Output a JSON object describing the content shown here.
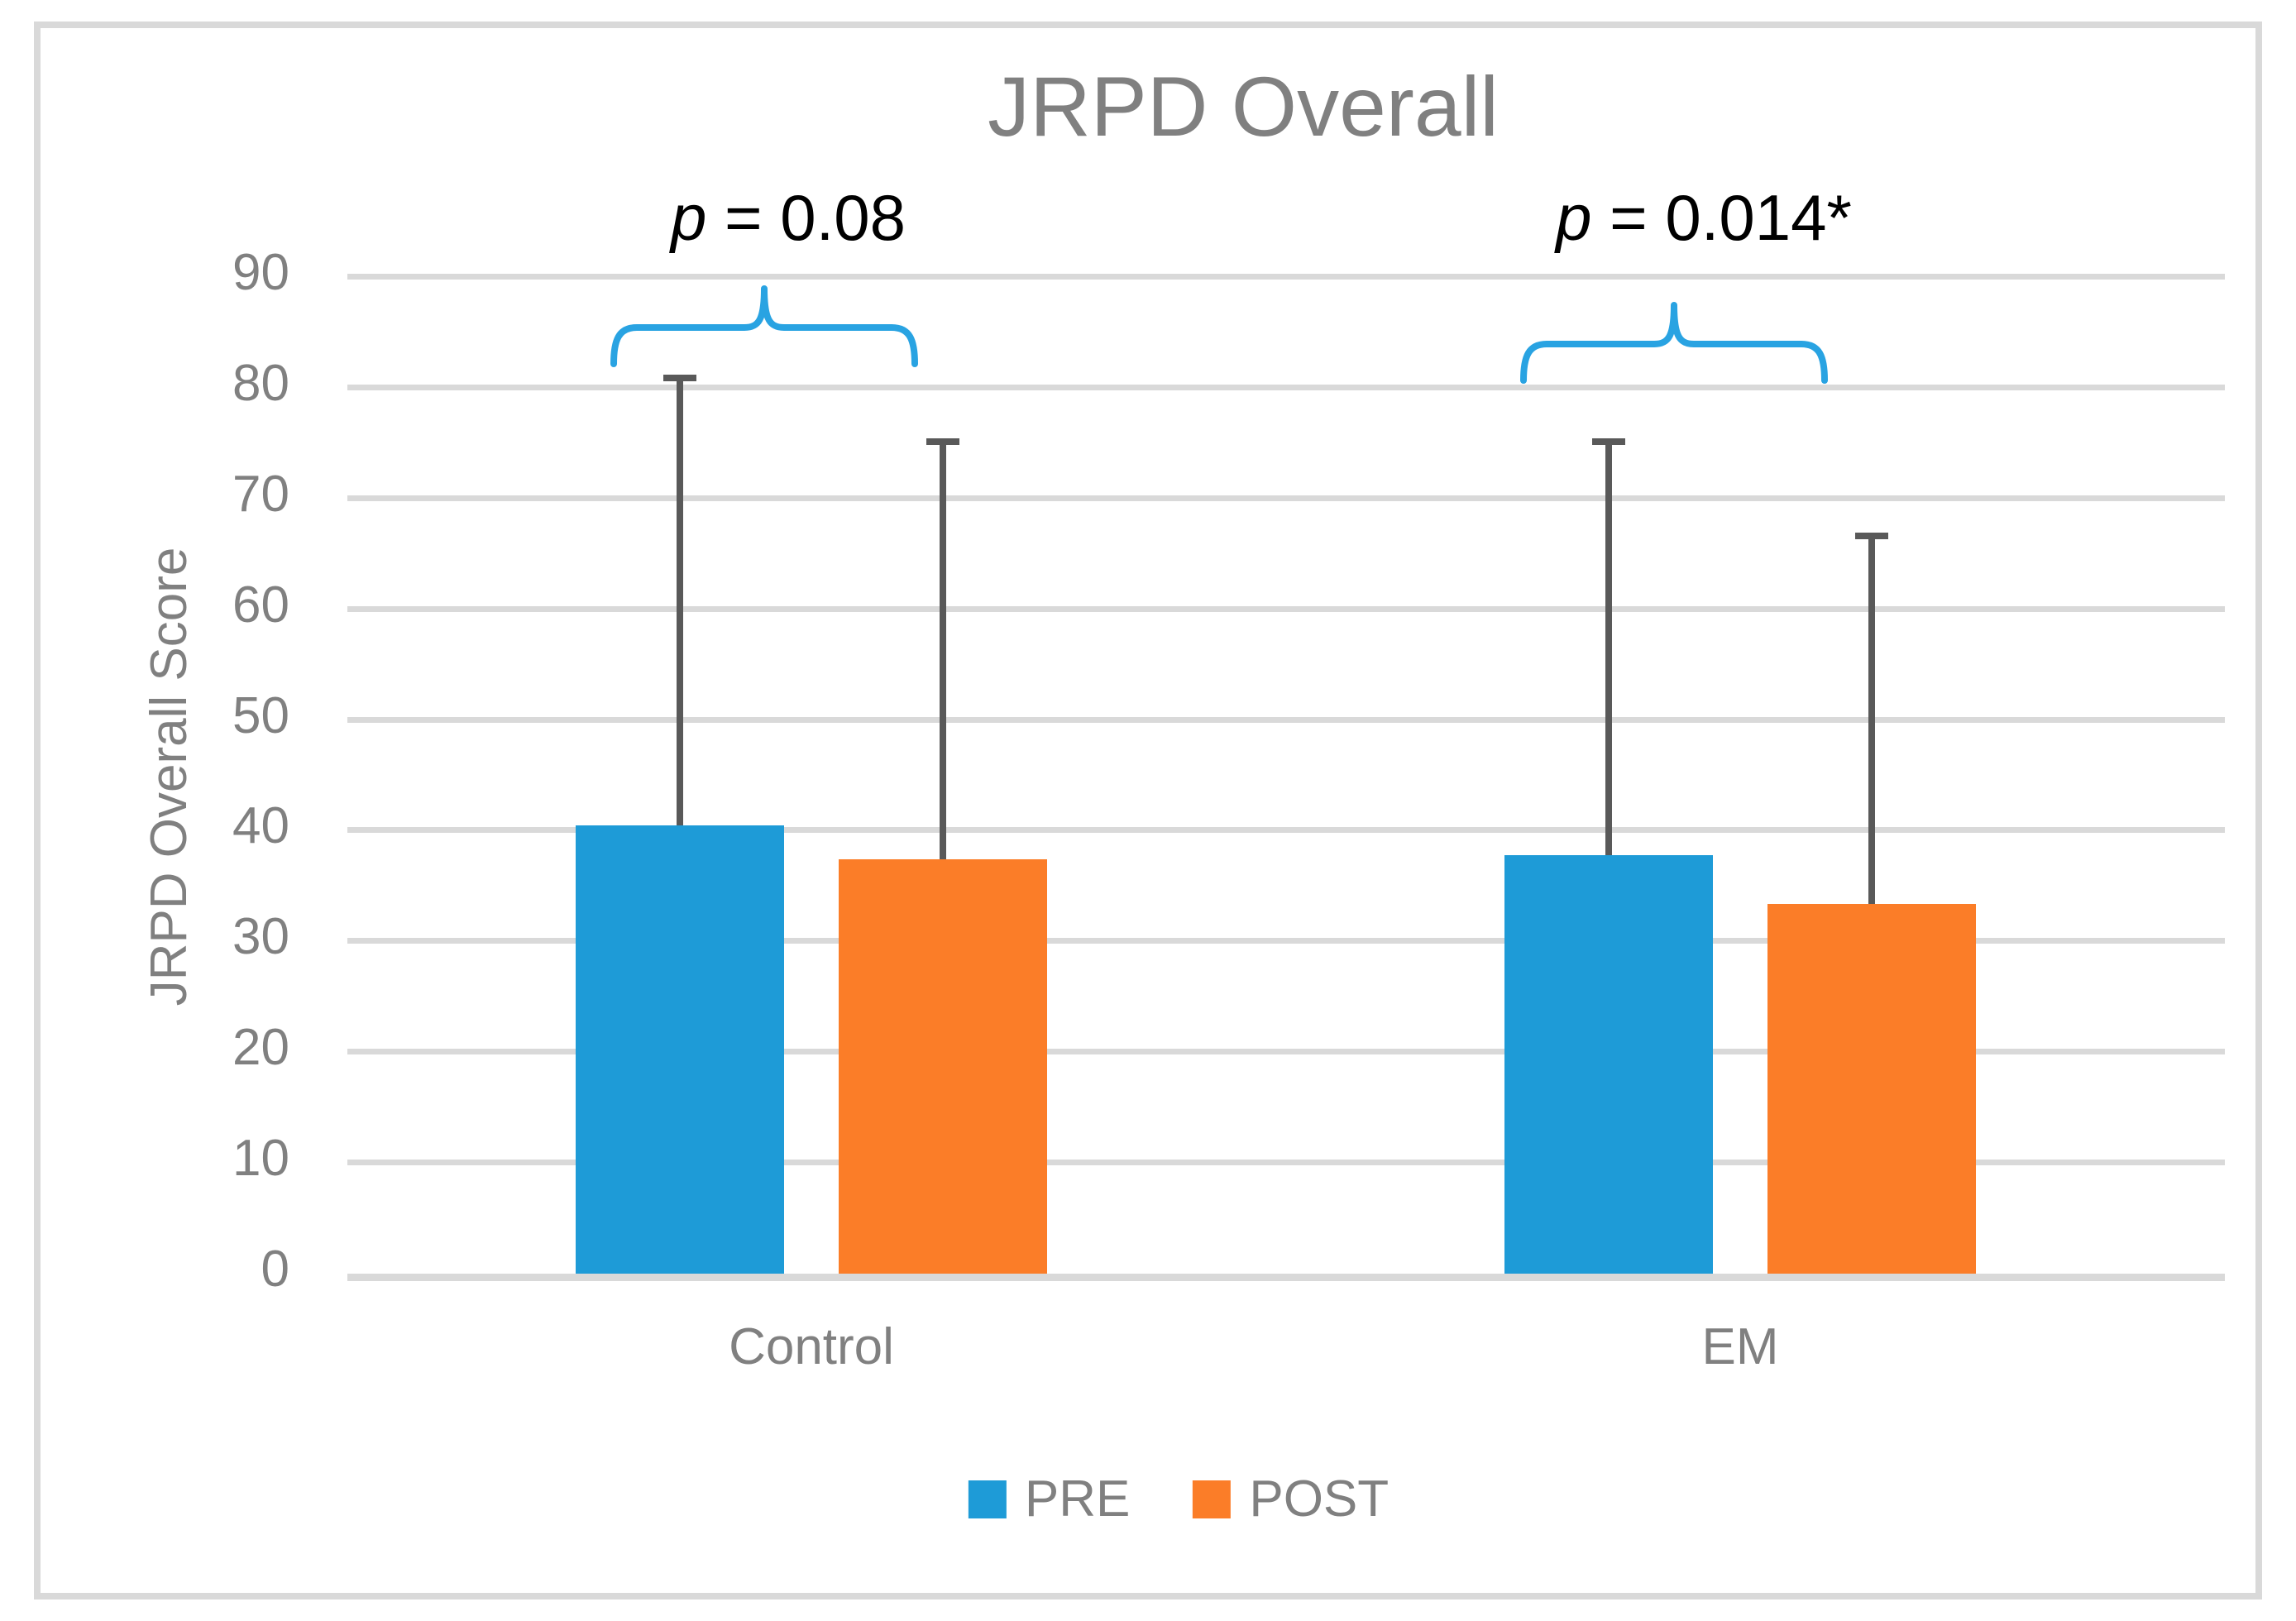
{
  "chart_data": {
    "type": "bar",
    "title": "JRPD Overall",
    "ylabel": "JRPD Overall Score",
    "xlabel": "",
    "ylim": [
      0,
      90
    ],
    "ytick_step": 10,
    "grid": true,
    "legend_position": "bottom",
    "categories": [
      "Control",
      "EM"
    ],
    "series": [
      {
        "name": "PRE",
        "color": "#1E9BD7",
        "values": [
          40.5,
          37.8
        ],
        "error_bar_top": [
          81.2,
          75.4
        ]
      },
      {
        "name": "POST",
        "color": "#FB7D28",
        "values": [
          37.4,
          33.4
        ],
        "error_bar_top": [
          75.4,
          66.9
        ]
      }
    ],
    "annotations": [
      {
        "prefix": "p",
        "text": "= 0.08",
        "category": "Control"
      },
      {
        "prefix": "p",
        "text": "= 0.014*",
        "category": "EM"
      }
    ],
    "colors": {
      "error_bar": "#595959",
      "gridline": "#D9D9D9",
      "axis_line": "#D9D9D9",
      "text": "#808080",
      "title": "#808080",
      "annotation": "#000000",
      "bracket": "#29A3E2",
      "border": "#D9D9D9",
      "background": "#FFFFFF"
    }
  }
}
